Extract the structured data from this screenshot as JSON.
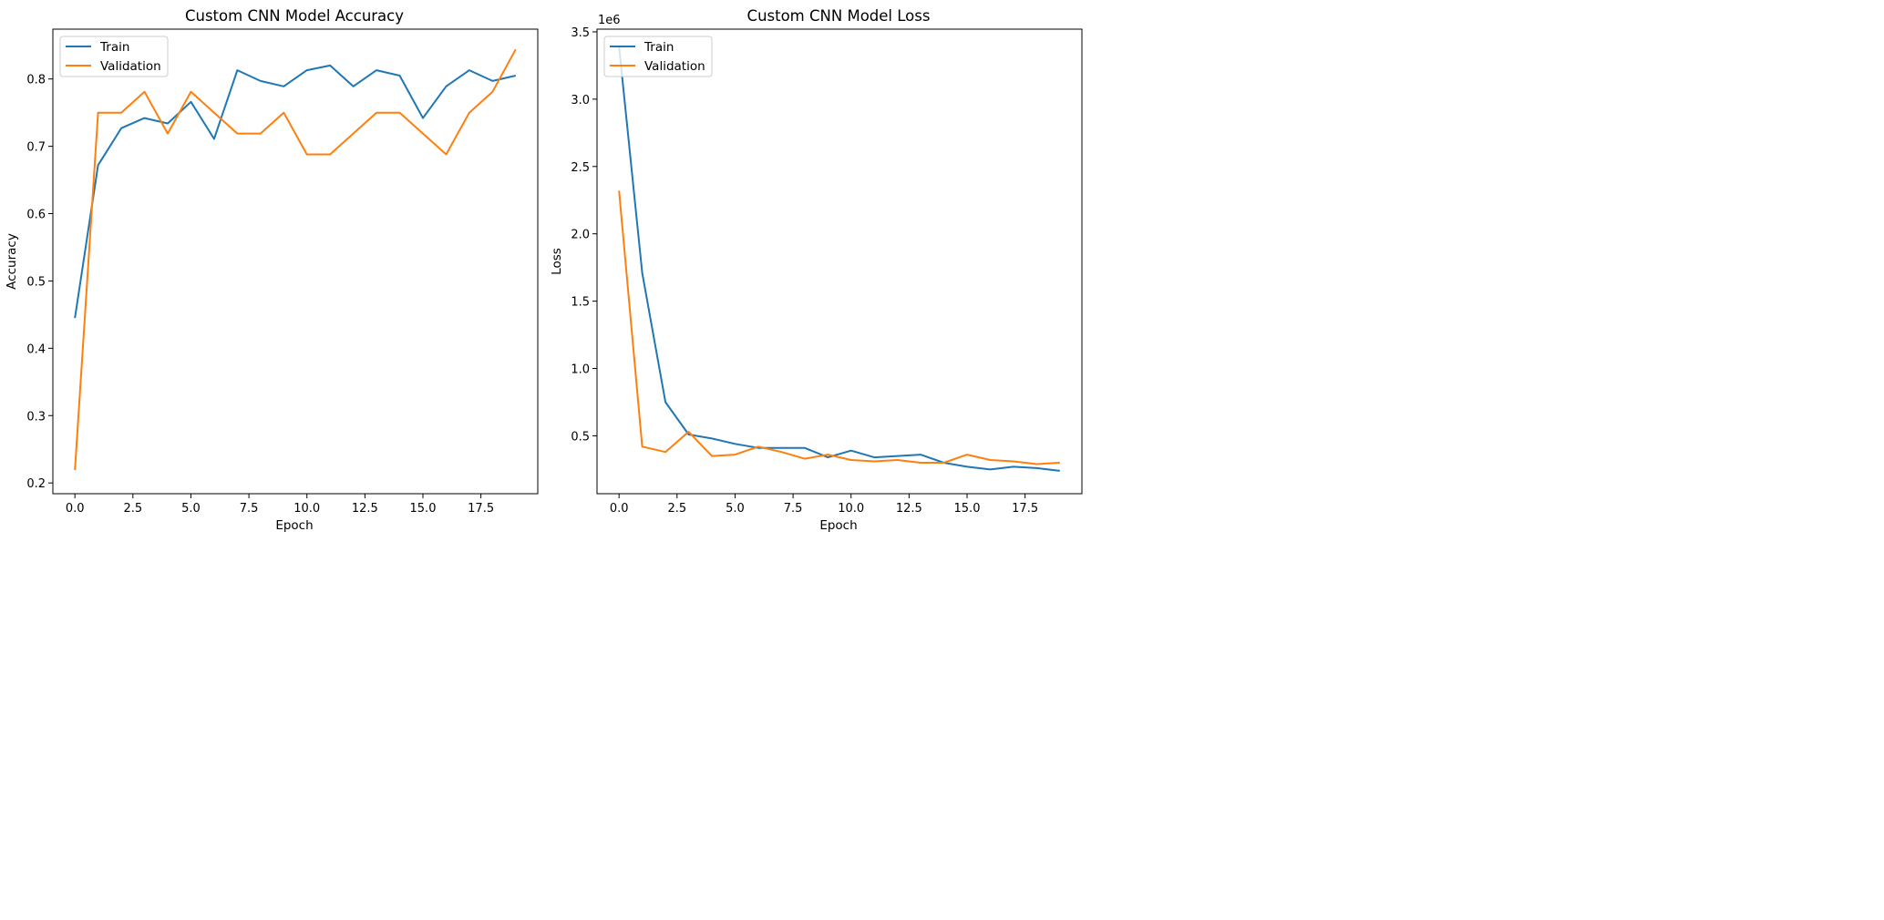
{
  "chart_data": [
    {
      "id": "accuracy",
      "type": "line",
      "title": "Custom CNN Model Accuracy",
      "xlabel": "Epoch",
      "ylabel": "Accuracy",
      "xlim": [
        -0.95,
        19.95
      ],
      "ylim": [
        0.184,
        0.874
      ],
      "xticks": [
        0,
        2.5,
        5,
        7.5,
        10,
        12.5,
        15,
        17.5
      ],
      "xtick_labels": [
        "0.0",
        "2.5",
        "5.0",
        "7.5",
        "10.0",
        "12.5",
        "15.0",
        "17.5"
      ],
      "yticks": [
        0.2,
        0.3,
        0.4,
        0.5,
        0.6,
        0.7,
        0.8
      ],
      "ytick_labels": [
        "0.2",
        "0.3",
        "0.4",
        "0.5",
        "0.6",
        "0.7",
        "0.8"
      ],
      "offset_text": "",
      "legend": "top-left",
      "grid": false,
      "x": [
        0,
        1,
        2,
        3,
        4,
        5,
        6,
        7,
        8,
        9,
        10,
        11,
        12,
        13,
        14,
        15,
        16,
        17,
        18,
        19
      ],
      "series": [
        {
          "name": "Train",
          "color": "#1f77b4",
          "values": [
            0.445,
            0.672,
            0.727,
            0.742,
            0.734,
            0.766,
            0.711,
            0.813,
            0.797,
            0.789,
            0.813,
            0.82,
            0.789,
            0.813,
            0.805,
            0.742,
            0.789,
            0.813,
            0.797,
            0.805
          ]
        },
        {
          "name": "Validation",
          "color": "#ff7f0e",
          "values": [
            0.219,
            0.75,
            0.75,
            0.781,
            0.719,
            0.781,
            0.75,
            0.719,
            0.719,
            0.75,
            0.688,
            0.688,
            0.719,
            0.75,
            0.75,
            0.719,
            0.688,
            0.75,
            0.781,
            0.844
          ]
        }
      ]
    },
    {
      "id": "loss",
      "type": "line",
      "title": "Custom CNN Model Loss",
      "xlabel": "Epoch",
      "ylabel": "Loss",
      "xlim": [
        -0.95,
        19.95
      ],
      "ylim": [
        0.07,
        3.52
      ],
      "xticks": [
        0,
        2.5,
        5,
        7.5,
        10,
        12.5,
        15,
        17.5
      ],
      "xtick_labels": [
        "0.0",
        "2.5",
        "5.0",
        "7.5",
        "10.0",
        "12.5",
        "15.0",
        "17.5"
      ],
      "yticks": [
        0.5,
        1.0,
        1.5,
        2.0,
        2.5,
        3.0,
        3.5
      ],
      "ytick_labels": [
        "0.5",
        "1.0",
        "1.5",
        "2.0",
        "2.5",
        "3.0",
        "3.5"
      ],
      "offset_text": "1e6",
      "legend": "top-left",
      "grid": false,
      "x": [
        0,
        1,
        2,
        3,
        4,
        5,
        6,
        7,
        8,
        9,
        10,
        11,
        12,
        13,
        14,
        15,
        16,
        17,
        18,
        19
      ],
      "series": [
        {
          "name": "Train",
          "color": "#1f77b4",
          "values": [
            3.39,
            1.71,
            0.75,
            0.51,
            0.48,
            0.44,
            0.41,
            0.41,
            0.41,
            0.34,
            0.39,
            0.34,
            0.35,
            0.36,
            0.3,
            0.27,
            0.25,
            0.27,
            0.26,
            0.24
          ]
        },
        {
          "name": "Validation",
          "color": "#ff7f0e",
          "values": [
            2.32,
            0.42,
            0.38,
            0.53,
            0.35,
            0.36,
            0.42,
            0.38,
            0.33,
            0.36,
            0.32,
            0.31,
            0.32,
            0.3,
            0.3,
            0.36,
            0.32,
            0.31,
            0.29,
            0.3
          ]
        }
      ]
    }
  ]
}
